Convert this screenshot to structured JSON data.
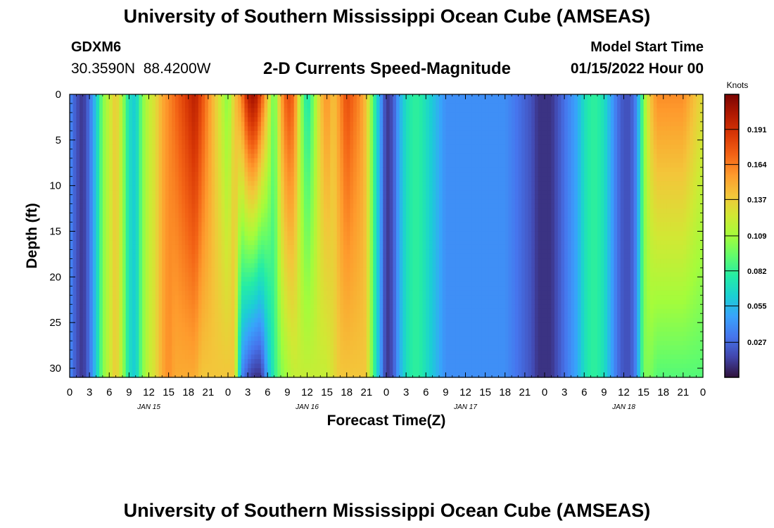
{
  "header": {
    "title": "University of Southern Mississippi Ocean Cube (AMSEAS)",
    "station_id": "GDXM6",
    "coords": "30.3590N  88.4200W",
    "subtitle": "2-D Currents Speed-Magnitude",
    "model_start_label": "Model Start Time",
    "model_start_value": "01/15/2022 Hour 00"
  },
  "footer": {
    "title": "University of Southern Mississippi Ocean Cube (AMSEAS)"
  },
  "colors": {
    "colormap": [
      "#30123b",
      "#4145ab",
      "#4675ed",
      "#39a2fc",
      "#1bcfd4",
      "#24eca6",
      "#61fc6c",
      "#a4fc3b",
      "#d1e834",
      "#f3c63a",
      "#fe9b2d",
      "#f36315",
      "#d93806",
      "#b11901",
      "#7a0402"
    ]
  },
  "chart_data": {
    "type": "heatmap",
    "title": "2-D Currents Speed-Magnitude",
    "xlabel": "Forecast Time(Z)",
    "ylabel": "Depth (ft)",
    "colorbar_label": "Knots",
    "x_tick_labels": [
      "0",
      "3",
      "6",
      "9",
      "12",
      "15",
      "18",
      "21",
      "0",
      "3",
      "6",
      "9",
      "12",
      "15",
      "18",
      "21",
      "0",
      "3",
      "6",
      "9",
      "12",
      "15",
      "18",
      "21",
      "0",
      "3",
      "6",
      "9",
      "12",
      "15",
      "18",
      "21",
      "0"
    ],
    "x_range_hours": [
      0,
      96
    ],
    "date_labels": [
      {
        "label": "JAN 15",
        "hour": 12
      },
      {
        "label": "JAN 16",
        "hour": 36
      },
      {
        "label": "JAN 17",
        "hour": 60
      },
      {
        "label": "JAN 18",
        "hour": 84
      }
    ],
    "y_ticks": [
      0,
      5,
      10,
      15,
      20,
      25,
      30
    ],
    "y_range_ft": [
      0,
      31
    ],
    "y_inverted": true,
    "color_range": [
      0.0,
      0.218
    ],
    "colorbar_ticks": [
      0.027,
      0.055,
      0.082,
      0.109,
      0.137,
      0.164,
      0.191
    ],
    "hours": [
      0,
      1,
      2,
      3,
      4,
      5,
      6,
      7,
      8,
      9,
      10,
      11,
      12,
      13,
      14,
      15,
      16,
      17,
      18,
      19,
      20,
      21,
      22,
      23,
      24,
      25,
      26,
      27,
      28,
      29,
      30,
      31,
      32,
      33,
      34,
      35,
      36,
      37,
      38,
      39,
      40,
      41,
      42,
      43,
      44,
      45,
      46,
      47,
      48,
      49,
      50,
      51,
      52,
      53,
      54,
      55,
      56,
      57,
      58,
      59,
      60,
      61,
      62,
      63,
      64,
      65,
      66,
      67,
      68,
      69,
      70,
      71,
      72,
      73,
      74,
      75,
      76,
      77,
      78,
      79,
      80,
      81,
      82,
      83,
      84,
      85,
      86,
      87,
      88,
      89,
      90,
      91,
      92,
      93,
      94,
      95,
      96
    ],
    "surface_speed_knots": [
      0.04,
      0.02,
      0.01,
      0.03,
      0.06,
      0.1,
      0.12,
      0.14,
      0.11,
      0.07,
      0.06,
      0.1,
      0.12,
      0.13,
      0.15,
      0.16,
      0.17,
      0.18,
      0.19,
      0.2,
      0.18,
      0.16,
      0.14,
      0.12,
      0.1,
      0.14,
      0.16,
      0.2,
      0.21,
      0.18,
      0.14,
      0.09,
      0.15,
      0.18,
      0.17,
      0.11,
      0.07,
      0.1,
      0.14,
      0.16,
      0.14,
      0.16,
      0.18,
      0.17,
      0.16,
      0.14,
      0.09,
      0.05,
      0.01,
      0.02,
      0.05,
      0.07,
      0.08,
      0.08,
      0.07,
      0.06,
      0.05,
      0.04,
      0.04,
      0.04,
      0.04,
      0.04,
      0.04,
      0.04,
      0.04,
      0.04,
      0.04,
      0.035,
      0.03,
      0.025,
      0.02,
      0.01,
      0.01,
      0.01,
      0.02,
      0.03,
      0.04,
      0.05,
      0.07,
      0.08,
      0.08,
      0.07,
      0.05,
      0.03,
      0.02,
      0.02,
      0.04,
      0.1,
      0.14,
      0.16,
      0.16,
      0.16,
      0.16,
      0.16,
      0.15,
      0.14,
      0.13
    ],
    "bottom_speed_knots": [
      0.04,
      0.02,
      0.01,
      0.03,
      0.06,
      0.1,
      0.12,
      0.14,
      0.11,
      0.07,
      0.06,
      0.1,
      0.12,
      0.13,
      0.15,
      0.16,
      0.15,
      0.15,
      0.15,
      0.15,
      0.14,
      0.14,
      0.14,
      0.14,
      0.14,
      0.14,
      0.04,
      0.02,
      0.01,
      0.01,
      0.05,
      0.08,
      0.1,
      0.11,
      0.12,
      0.12,
      0.12,
      0.12,
      0.12,
      0.12,
      0.13,
      0.14,
      0.14,
      0.14,
      0.14,
      0.14,
      0.09,
      0.05,
      0.01,
      0.02,
      0.05,
      0.07,
      0.08,
      0.08,
      0.07,
      0.06,
      0.05,
      0.04,
      0.04,
      0.04,
      0.04,
      0.04,
      0.04,
      0.04,
      0.04,
      0.04,
      0.04,
      0.035,
      0.03,
      0.025,
      0.02,
      0.01,
      0.01,
      0.01,
      0.02,
      0.03,
      0.04,
      0.05,
      0.07,
      0.08,
      0.08,
      0.07,
      0.05,
      0.03,
      0.02,
      0.02,
      0.04,
      0.1,
      0.1,
      0.09,
      0.09,
      0.09,
      0.09,
      0.09,
      0.09,
      0.09,
      0.09
    ]
  }
}
